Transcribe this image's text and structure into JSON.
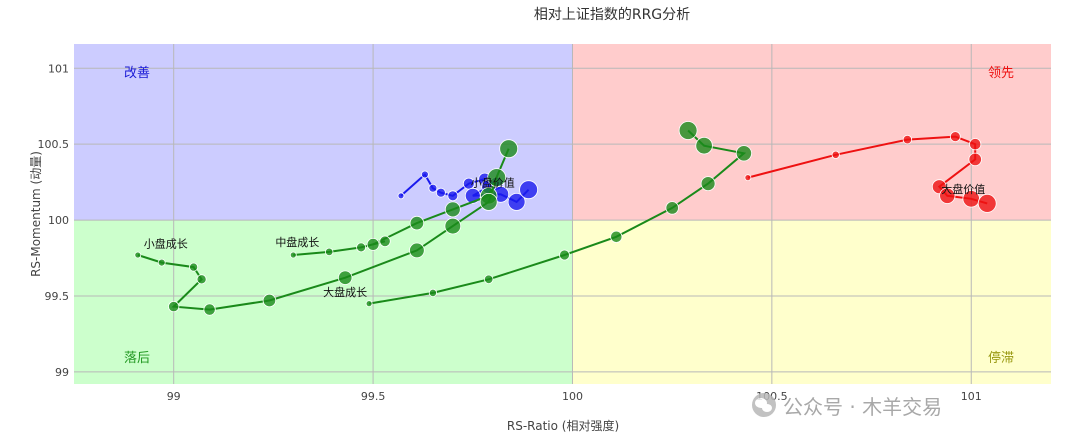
{
  "chart_data": {
    "type": "scatter",
    "title": "相对上证指数的RRG分析",
    "xlabel": "RS-Ratio (相对强度)",
    "ylabel": "RS-Momentum (动量)",
    "xlim": [
      98.75,
      101.2
    ],
    "ylim": [
      98.92,
      101.16
    ],
    "x_ticks": [
      99,
      99.5,
      100,
      100.5,
      101
    ],
    "y_ticks": [
      99,
      99.5,
      100,
      100.5,
      101
    ],
    "center": [
      100,
      100
    ],
    "grid": true,
    "quadrants": [
      {
        "name": "改善",
        "color": "#ccccff",
        "label_color": "#1a1ad6",
        "position": "top-left"
      },
      {
        "name": "领先",
        "color": "#ffcccc",
        "label_color": "#ee1111",
        "position": "top-right"
      },
      {
        "name": "落后",
        "color": "#ccffcc",
        "label_color": "#229922",
        "position": "bottom-left"
      },
      {
        "name": "停滞",
        "color": "#ffffcc",
        "label_color": "#999911",
        "position": "bottom-right"
      }
    ],
    "series": [
      {
        "name": "小盘价值",
        "color": "#1a1aee",
        "label_at": [
          99.8,
          100.22
        ],
        "x": [
          99.57,
          99.63,
          99.65,
          99.67,
          99.7,
          99.74,
          99.78,
          99.81,
          99.79,
          99.75,
          99.82,
          99.86,
          99.89
        ],
        "y": [
          100.16,
          100.3,
          100.21,
          100.18,
          100.16,
          100.24,
          100.27,
          100.24,
          100.22,
          100.16,
          100.17,
          100.12,
          100.2
        ]
      },
      {
        "name": "大盘价值",
        "color": "#ee1111",
        "label_at": [
          100.98,
          100.18
        ],
        "x": [
          100.44,
          100.66,
          100.84,
          100.96,
          101.01,
          101.01,
          100.92,
          100.94,
          101.0,
          101.04
        ],
        "y": [
          100.28,
          100.43,
          100.53,
          100.55,
          100.5,
          100.4,
          100.22,
          100.16,
          100.14,
          100.11
        ]
      },
      {
        "name": "大盘成长",
        "color": "#1a8a1a",
        "label_at": [
          99.43,
          99.5
        ],
        "x": [
          99.49,
          99.65,
          99.79,
          99.98,
          100.11,
          100.25,
          100.34,
          100.43,
          100.33,
          100.29
        ],
        "y": [
          99.45,
          99.52,
          99.61,
          99.77,
          99.89,
          100.08,
          100.24,
          100.44,
          100.49,
          100.59
        ]
      },
      {
        "name": "中盘成长",
        "color": "#1a8a1a",
        "label_at": [
          99.31,
          99.83
        ],
        "x": [
          99.3,
          99.39,
          99.47,
          99.53,
          99.5,
          99.61,
          99.7,
          99.79,
          99.84
        ],
        "y": [
          99.77,
          99.79,
          99.82,
          99.86,
          99.84,
          99.98,
          100.07,
          100.16,
          100.47
        ]
      },
      {
        "name": "小盘成长",
        "color": "#1a8a1a",
        "label_at": [
          98.98,
          99.82
        ],
        "x": [
          98.91,
          98.97,
          99.05,
          99.07,
          99.0,
          99.09,
          99.24,
          99.43,
          99.61,
          99.7,
          99.79,
          99.81
        ],
        "y": [
          99.77,
          99.72,
          99.69,
          99.61,
          99.43,
          99.41,
          99.47,
          99.62,
          99.8,
          99.96,
          100.12,
          100.28
        ]
      }
    ]
  },
  "watermark": {
    "text": "公众号 · 木羊交易",
    "icon": "wechat-logo-icon"
  }
}
